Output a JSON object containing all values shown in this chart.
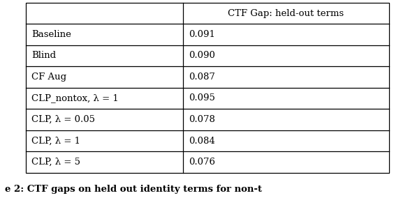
{
  "col_header": "CTF Gap: held-out terms",
  "rows": [
    {
      "label": "Baseline",
      "value": "0.091"
    },
    {
      "label": "Blind",
      "value": "0.090"
    },
    {
      "label": "CF Aug",
      "value": "0.087"
    },
    {
      "label": "CLP_nontox, λ = 1",
      "value": "0.095"
    },
    {
      "label": "CLP, λ = 0.05",
      "value": "0.078"
    },
    {
      "label": "CLP, λ = 1",
      "value": "0.084"
    },
    {
      "label": "CLP, λ = 5",
      "value": "0.076"
    }
  ],
  "caption": "e 2: CTF gaps on held out identity terms for non-t",
  "font_size": 9.5,
  "caption_font_size": 9.5,
  "bg_color": "#ffffff",
  "border_color": "#000000",
  "fig_width": 5.74,
  "fig_height": 2.84,
  "dpi": 100
}
